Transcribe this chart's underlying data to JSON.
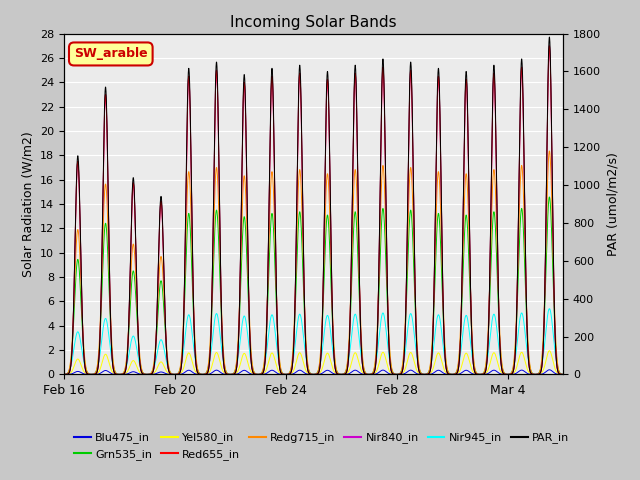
{
  "title": "Incoming Solar Bands",
  "ylabel_left": "Solar Radiation (W/m2)",
  "ylabel_right": "PAR (umol/m2/s)",
  "annotation_text": "SW_arable",
  "annotation_bg": "#ffff99",
  "annotation_border": "#cc0000",
  "annotation_text_color": "#cc0000",
  "ylim_left": [
    0,
    28
  ],
  "ylim_right": [
    0,
    1800
  ],
  "yticks_left": [
    0,
    2,
    4,
    6,
    8,
    10,
    12,
    14,
    16,
    18,
    20,
    22,
    24,
    26,
    28
  ],
  "yticks_right": [
    0,
    200,
    400,
    600,
    800,
    1000,
    1200,
    1400,
    1600,
    1800
  ],
  "xtick_labels": [
    "Feb 16",
    "Feb 20",
    "Feb 24",
    "Feb 28",
    "Mar 4"
  ],
  "axes_bg": "#ebebeb",
  "grid_color": "#ffffff",
  "series_colors": {
    "Blu475_in": "#0000dd",
    "Grn535_in": "#00cc00",
    "Yel580_in": "#ffff00",
    "Red655_in": "#ff0000",
    "Redg715_in": "#ff8800",
    "Nir840_in": "#cc00cc",
    "Nir945_in": "#00ffff",
    "PAR_in": "#000000"
  },
  "num_days": 18,
  "points_per_day": 200,
  "peak_heights": {
    "Blu475_in": 0.35,
    "Grn535_in": 13.5,
    "Yel580_in": 1.8,
    "Red655_in": 25.0,
    "Redg715_in": 17.0,
    "Nir840_in": 25.0,
    "Nir945_in": 5.0,
    "PAR_in": 1650
  },
  "peak_widths": {
    "Blu475_in": 0.12,
    "Grn535_in": 0.12,
    "Yel580_in": 0.12,
    "Red655_in": 0.1,
    "Redg715_in": 0.12,
    "Nir840_in": 0.1,
    "Nir945_in": 0.14,
    "PAR_in": 0.1
  },
  "day_peak_scales": [
    0.7,
    0.92,
    0.63,
    0.57,
    0.98,
    1.0,
    0.96,
    0.98,
    0.99,
    0.97,
    0.99,
    1.01,
    1.0,
    0.98,
    0.97,
    0.99,
    1.01,
    1.08
  ],
  "figsize": [
    6.4,
    4.8
  ],
  "dpi": 100
}
